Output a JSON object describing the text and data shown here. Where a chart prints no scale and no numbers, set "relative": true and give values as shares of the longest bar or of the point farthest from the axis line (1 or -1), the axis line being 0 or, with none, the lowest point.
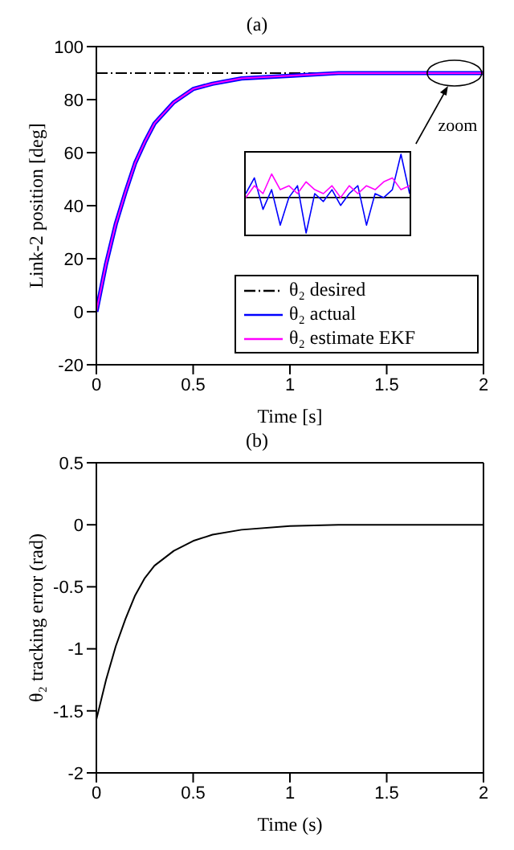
{
  "chart_data": [
    {
      "type": "line",
      "title": "(a)",
      "xlabel": "Time  [s]",
      "ylabel": "Link-2 position [deg]",
      "x": [
        0,
        0.05,
        0.1,
        0.15,
        0.2,
        0.25,
        0.3,
        0.4,
        0.5,
        0.6,
        0.75,
        1,
        1.25,
        1.5,
        1.75,
        2
      ],
      "xlim": [
        0,
        2
      ],
      "xticks": [
        0,
        0.5,
        1,
        1.5,
        2
      ],
      "ylim": [
        -20,
        100
      ],
      "yticks": [
        -20,
        0,
        20,
        40,
        60,
        80,
        100
      ],
      "legend": "bottom right",
      "annotations": [
        {
          "text": "zoom",
          "x": 1.85,
          "y": 90
        }
      ],
      "series": [
        {
          "name": "θ₂ desired",
          "color": "#000000",
          "line_style": "dashed",
          "values": [
            90,
            90,
            90,
            90,
            90,
            90,
            90,
            90,
            90,
            90,
            90,
            90,
            90,
            90,
            90,
            90
          ]
        },
        {
          "name": "θ₂ actual",
          "color": "#0000ff",
          "values": [
            0,
            18,
            33,
            45,
            56,
            64,
            71,
            79,
            84,
            86,
            88,
            89,
            90,
            90,
            90,
            90
          ]
        },
        {
          "name": "θ₂ estimate EKF",
          "color": "#ff00ff",
          "values": [
            0,
            18,
            33,
            45,
            56,
            64,
            71,
            79,
            84,
            86,
            88,
            89,
            90,
            90,
            90,
            90
          ]
        }
      ]
    },
    {
      "type": "line",
      "relative": true,
      "categories": [
        null,
        null,
        null,
        null,
        null,
        null,
        null,
        null,
        null,
        null,
        null,
        null,
        null,
        null,
        null,
        null,
        null,
        null,
        null,
        null
      ],
      "series": [
        {
          "color": "#000000",
          "values": [
            0.45,
            0.45,
            0.45,
            0.45,
            0.45,
            0.45,
            0.45,
            0.45,
            0.45,
            0.45,
            0.45,
            0.45,
            0.45,
            0.45,
            0.45,
            0.45,
            0.45,
            0.45,
            0.45,
            0.45
          ]
        },
        {
          "color": "#0000ff",
          "values": [
            0.5,
            0.7,
            0.3,
            0.55,
            0.1,
            0.45,
            0.6,
            0.0,
            0.5,
            0.4,
            0.55,
            0.35,
            0.5,
            0.6,
            0.1,
            0.5,
            0.45,
            0.55,
            1.0,
            0.5
          ]
        },
        {
          "color": "#ff00ff",
          "values": [
            0.45,
            0.6,
            0.5,
            0.75,
            0.55,
            0.6,
            0.5,
            0.65,
            0.55,
            0.5,
            0.6,
            0.45,
            0.6,
            0.5,
            0.6,
            0.55,
            0.65,
            0.7,
            0.55,
            0.6
          ]
        }
      ]
    },
    {
      "type": "line",
      "title": "(b)",
      "xlabel": "Time (s)",
      "ylabel": "θ₂ tracking error (rad)",
      "x": [
        0,
        0.05,
        0.1,
        0.15,
        0.2,
        0.25,
        0.3,
        0.4,
        0.5,
        0.6,
        0.75,
        1,
        1.25,
        1.5,
        1.75,
        2
      ],
      "xlim": [
        0,
        2
      ],
      "xticks": [
        0,
        0.5,
        1,
        1.5,
        2
      ],
      "ylim": [
        -2,
        0.5
      ],
      "yticks": [
        -2,
        -1.5,
        -1,
        -0.5,
        0,
        0.5
      ],
      "series": [
        {
          "color": "#000000",
          "values": [
            -1.57,
            -1.25,
            -0.98,
            -0.76,
            -0.57,
            -0.43,
            -0.33,
            -0.21,
            -0.13,
            -0.08,
            -0.04,
            -0.01,
            0,
            0,
            0,
            0
          ]
        }
      ]
    }
  ]
}
